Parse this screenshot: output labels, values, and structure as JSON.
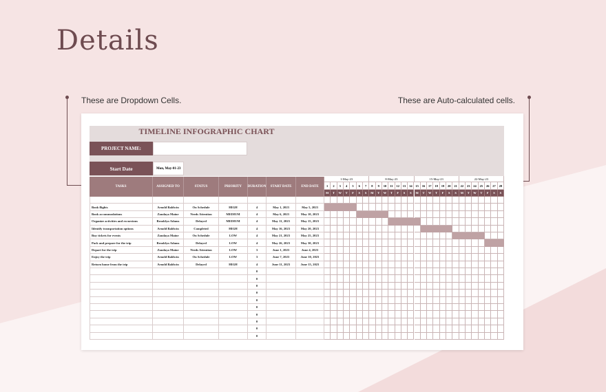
{
  "heading": "Details",
  "notes": {
    "left": "These are Dropdown Cells.",
    "right": "These are Auto-calculated cells."
  },
  "sheet": {
    "title": "TIMELINE INFOGRAPHIC CHART",
    "project_label": "PROJECT NAME:",
    "project_value": "",
    "start_label": "Start Date",
    "start_value": "Mon, May-01-23",
    "columns": [
      "TASKS",
      "ASSIGNED TO",
      "STATUS",
      "PRIORITY",
      "DURATION",
      "START DATE",
      "END DATE"
    ],
    "rows": [
      [
        "",
        "",
        "",
        "",
        "",
        "",
        ""
      ],
      [
        "Book flights",
        "Arnold Baldwin",
        "On Schedule",
        "HIGH",
        "4",
        "May 1, 2023",
        "May 5, 2023"
      ],
      [
        "Book accommodations",
        "Zandaya Maine",
        "Needs Attention",
        "MEDIUM",
        "4",
        "May 6, 2023",
        "May 10, 2023"
      ],
      [
        "Organize activities and excursions",
        "Brooklyn Adams",
        "Delayed",
        "MEDIUM",
        "4",
        "May 11, 2023",
        "May 15, 2023"
      ],
      [
        "Identify transportation options",
        "Arnold Baldwin",
        "Completed",
        "HIGH",
        "4",
        "May 16, 2023",
        "May 20, 2023"
      ],
      [
        "Buy tickets for events",
        "Zandaya Maine",
        "On Schedule",
        "LOW",
        "4",
        "May 21, 2023",
        "May 25, 2023"
      ],
      [
        "Pack and prepare for the trip",
        "Brooklyn Adams",
        "Delayed",
        "LOW",
        "4",
        "May 26, 2023",
        "May 30, 2023"
      ],
      [
        "Depart for the trip",
        "Zandaya Maine",
        "Needs Attention",
        "LOW",
        "3",
        "June 1, 2023",
        "June 4, 2023"
      ],
      [
        "Enjoy the trip",
        "Arnold Baldwin",
        "On Schedule",
        "LOW",
        "3",
        "June 7, 2023",
        "June 10, 2023"
      ],
      [
        "Return home from the trip",
        "Arnold Baldwin",
        "Delayed",
        "HIGH",
        "4",
        "June 11, 2023",
        "June 15, 2023"
      ],
      [
        "",
        "",
        "",
        "",
        "0",
        "",
        ""
      ],
      [
        "",
        "",
        "",
        "",
        "0",
        "",
        ""
      ],
      [
        "",
        "",
        "",
        "",
        "0",
        "",
        ""
      ],
      [
        "",
        "",
        "",
        "",
        "0",
        "",
        ""
      ],
      [
        "",
        "",
        "",
        "",
        "0",
        "",
        ""
      ],
      [
        "",
        "",
        "",
        "",
        "0",
        "",
        ""
      ],
      [
        "",
        "",
        "",
        "",
        "0",
        "",
        ""
      ],
      [
        "",
        "",
        "",
        "",
        "0",
        "",
        ""
      ],
      [
        "",
        "",
        "",
        "",
        "0",
        "",
        ""
      ],
      [
        "",
        "",
        "",
        "",
        "0",
        "",
        ""
      ]
    ],
    "gantt": {
      "weeks": [
        "1-May-23",
        "8-May-23",
        "15-May-23",
        "22-May-23"
      ],
      "days": [
        "1",
        "2",
        "3",
        "4",
        "5",
        "6",
        "7",
        "8",
        "9",
        "10",
        "11",
        "12",
        "13",
        "14",
        "15",
        "16",
        "17",
        "18",
        "19",
        "20",
        "21",
        "22",
        "23",
        "24",
        "25",
        "26",
        "27",
        "28"
      ],
      "weekdays": [
        "M",
        "T",
        "W",
        "T",
        "F",
        "S",
        "S",
        "M",
        "T",
        "W",
        "T",
        "F",
        "S",
        "S",
        "M",
        "T",
        "W",
        "T",
        "F",
        "S",
        "S",
        "M",
        "T",
        "W",
        "T",
        "F",
        "S",
        "S"
      ],
      "bars": [
        {
          "row": 1,
          "start": 1,
          "end": 5
        },
        {
          "row": 2,
          "start": 6,
          "end": 10
        },
        {
          "row": 3,
          "start": 11,
          "end": 15
        },
        {
          "row": 4,
          "start": 16,
          "end": 20
        },
        {
          "row": 5,
          "start": 21,
          "end": 25
        },
        {
          "row": 6,
          "start": 26,
          "end": 28
        }
      ]
    }
  },
  "colors": {
    "accent": "#7a5257",
    "header": "#9e7b7d",
    "bar": "#bfa2a4"
  }
}
